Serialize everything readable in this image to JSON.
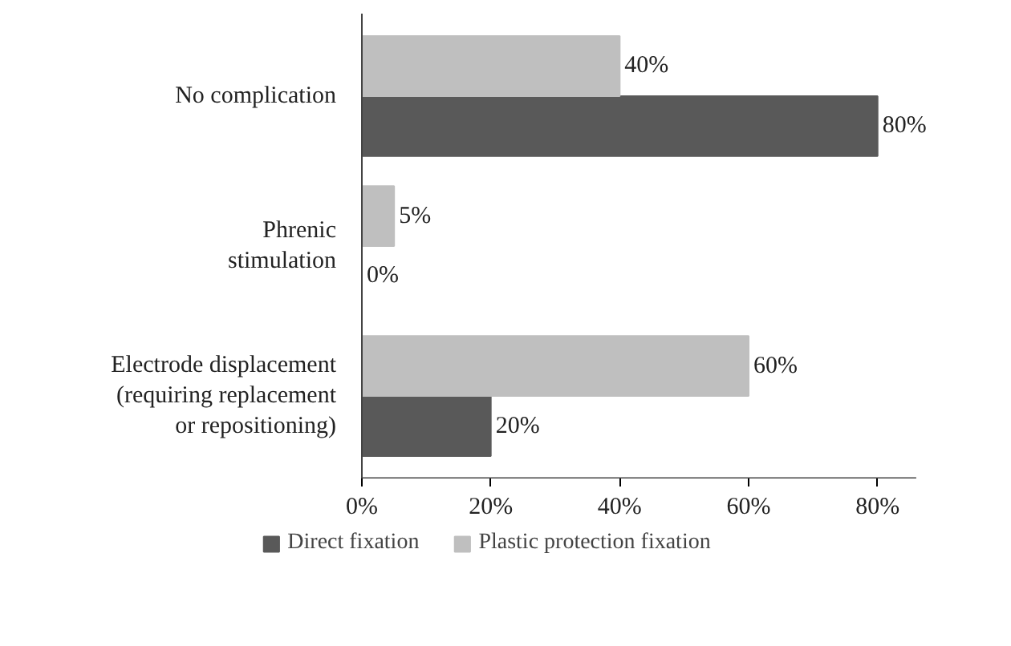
{
  "chart_data": {
    "type": "bar",
    "orientation": "horizontal",
    "categories": [
      "No complication",
      "Phrenic\nstimulation",
      "Electrode displacement\n(requiring replacement\nor repositioning)"
    ],
    "series": [
      {
        "name": "Direct fixation",
        "color": "#595959",
        "values": [
          80,
          0,
          20
        ],
        "value_labels": [
          "80%",
          "0%",
          "20%"
        ]
      },
      {
        "name": "Plastic protection fixation",
        "color": "#bfbfbf",
        "values": [
          40,
          5,
          60
        ],
        "value_labels": [
          "40%",
          "5%",
          "60%"
        ]
      }
    ],
    "xlim": [
      0,
      86
    ],
    "xticks": [
      {
        "value": 0,
        "label": "0%"
      },
      {
        "value": 20,
        "label": "20%"
      },
      {
        "value": 40,
        "label": "40%"
      },
      {
        "value": 60,
        "label": "60%"
      },
      {
        "value": 80,
        "label": "80%"
      }
    ],
    "legend": "bottom"
  }
}
